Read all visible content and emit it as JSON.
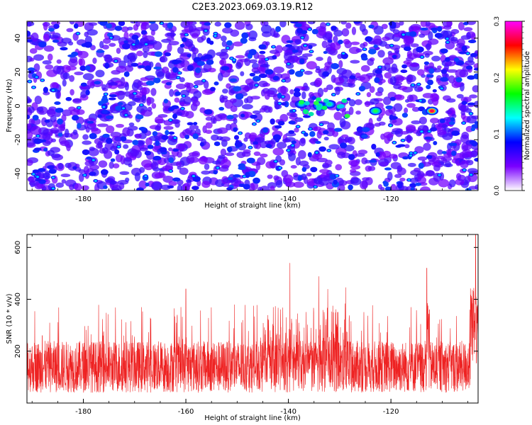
{
  "title": "C2E3.2023.069.03.19.R12",
  "chart_data": [
    {
      "type": "heatmap",
      "xlabel": "Height of straight line (km)",
      "ylabel": "Frequency (Hz)",
      "xlim": [
        -191,
        -103
      ],
      "ylim": [
        -50,
        50
      ],
      "x_ticks": [
        -180,
        -160,
        -140,
        -120
      ],
      "y_ticks": [
        -40,
        -20,
        0,
        20,
        40
      ],
      "colorbar": {
        "label": "Normalized spectral amplitude",
        "range": [
          0.0,
          0.3
        ],
        "ticks": [
          "0.0",
          "0.1",
          "0.2",
          "0.3"
        ],
        "colors": [
          "#ffffff",
          "#7a00ff",
          "#0000ff",
          "#00ffff",
          "#00ff00",
          "#ffff00",
          "#ff0000",
          "#ff00ff"
        ]
      },
      "hotspots": [
        {
          "x": -137.5,
          "y": 1,
          "value": 0.14
        },
        {
          "x": -134,
          "y": 0,
          "value": 0.15
        },
        {
          "x": -132,
          "y": 1,
          "value": 0.15
        },
        {
          "x": -123,
          "y": -3,
          "value": 0.17
        },
        {
          "x": -112,
          "y": -3,
          "value": 0.27
        }
      ]
    },
    {
      "type": "line",
      "xlabel": "Height of straight line (km)",
      "ylabel": "SNR (10 * v/v)",
      "xlim": [
        -191,
        -103
      ],
      "ylim": [
        0,
        650
      ],
      "x_ticks": [
        -180,
        -160,
        -140,
        -120
      ],
      "y_ticks": [
        200,
        400,
        600
      ],
      "series_color": "#ee2222",
      "baseline_band": [
        40,
        240
      ],
      "peaks": [
        {
          "x": -188,
          "y": 260
        },
        {
          "x": -160,
          "y": 440
        },
        {
          "x": -139.7,
          "y": 540
        },
        {
          "x": -113,
          "y": 520
        },
        {
          "x": -112.5,
          "y": 360
        },
        {
          "x": -103.5,
          "y": 650
        }
      ]
    }
  ]
}
